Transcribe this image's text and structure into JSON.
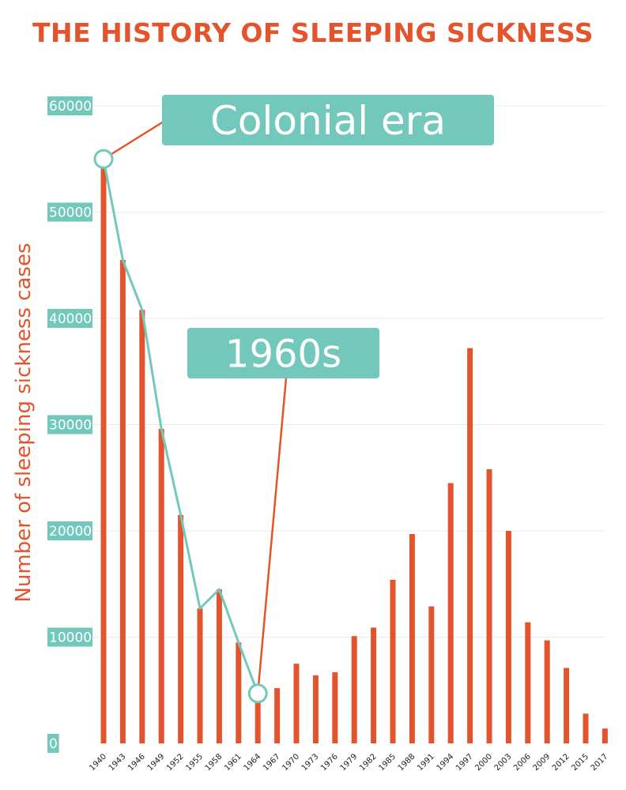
{
  "chart_data": {
    "type": "bar",
    "title": "THE HISTORY OF SLEEPING SICKNESS",
    "xlabel": "",
    "ylabel": "Number of sleeping sickness cases",
    "ylim": [
      0,
      60000
    ],
    "yticks": [
      0,
      10000,
      20000,
      30000,
      40000,
      50000,
      60000
    ],
    "grid": true,
    "categories": [
      "1940",
      "1943",
      "1946",
      "1949",
      "1952",
      "1955",
      "1958",
      "1961",
      "1964",
      "1967",
      "1970",
      "1973",
      "1976",
      "1979",
      "1982",
      "1985",
      "1988",
      "1991",
      "1994",
      "1997",
      "2000",
      "2003",
      "2006",
      "2009",
      "2012",
      "2015",
      "2017"
    ],
    "values": [
      55000,
      45500,
      40800,
      29600,
      21500,
      12700,
      14500,
      9500,
      4700,
      5200,
      7500,
      6400,
      6700,
      10100,
      10900,
      15400,
      19700,
      12900,
      24500,
      37200,
      25800,
      20000,
      11400,
      9700,
      7100,
      2800,
      1400
    ],
    "bar_color": "#e4542c",
    "trend_line": {
      "color": "#72c8bb",
      "categories": [
        "1940",
        "1943",
        "1946",
        "1949",
        "1952",
        "1955",
        "1958",
        "1961",
        "1964"
      ],
      "values": [
        55000,
        45500,
        40800,
        29600,
        21500,
        12700,
        14500,
        9500,
        4700
      ]
    },
    "annotations": [
      {
        "text": "Colonial era",
        "points_to": "1940",
        "value": 55000
      },
      {
        "text": "1960s",
        "points_to": "1964",
        "value": 4700
      }
    ]
  }
}
